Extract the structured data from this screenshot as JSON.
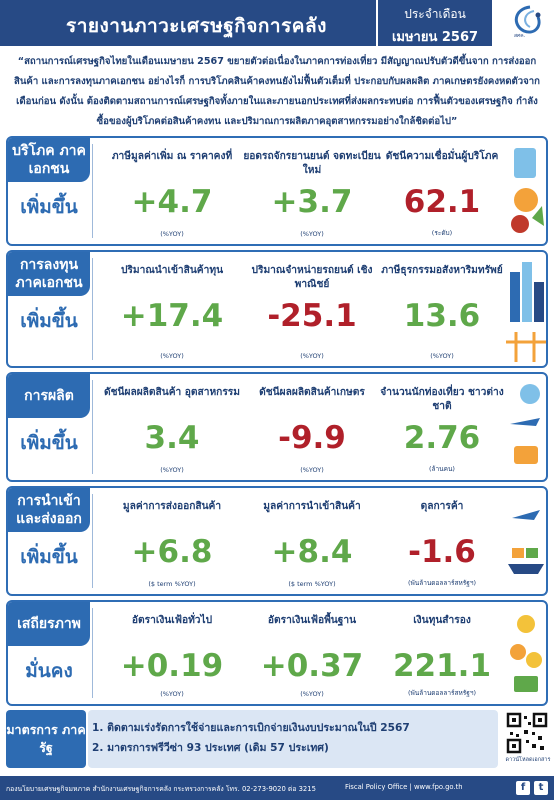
{
  "header": {
    "title": "รายงานภาวะเศรษฐกิจการคลัง",
    "period_label": "ประจำเดือน",
    "period_value": "เมษายน 2567",
    "logo_text": "สศค."
  },
  "summary": "“สถานการณ์เศรษฐกิจไทยในเดือนเมษายน 2567 ขยายตัวต่อเนื่องในภาคการท่องเที่ยว มีสัญญาณปรับตัวดีขึ้นจาก การส่งออกสินค้า และการลงทุนภาคเอกชน อย่างไรก็ การบริโภคสินค้าคงทนยังไม่ฟื้นตัวเต็มที่ ประกอบกับผลผลิต ภาคเกษตรยังคงหดตัวจากเดือนก่อน ดังนั้น ต้องติดตามสถานการณ์เศรษฐกิจทั้งภายในและภายนอกประเทศที่ส่งผลกระทบต่อ การฟื้นตัวของเศรษฐกิจ กำลังซื้อของผู้บริโภคต่อสินค้าคงทน และปริมาณการผลิตภาคอุตสาหกรรมอย่างใกล้ชิดต่อไป”",
  "sections": [
    {
      "label": "บริโภค ภาคเอกชน",
      "status": "เพิ่มขึ้น",
      "indicators": [
        {
          "label": "ภาษีมูลค่าเพิ่ม ณ ราคาคงที่",
          "value": "+4.7",
          "unit": "(%YOY)",
          "tone": "pos"
        },
        {
          "label": "ยอดรถจักรยานยนต์ จดทะเบียนใหม่",
          "value": "+3.7",
          "unit": "(%YOY)",
          "tone": "pos"
        },
        {
          "label": "ดัชนีความเชื่อมั่นผู้บริโภค",
          "value": "62.1",
          "unit": "(ระดับ)",
          "tone": "neg"
        }
      ]
    },
    {
      "label": "การลงทุน ภาคเอกชน",
      "status": "เพิ่มขึ้น",
      "indicators": [
        {
          "label": "ปริมาณนำเข้าสินค้าทุน",
          "value": "+17.4",
          "unit": "(%YOY)",
          "tone": "pos"
        },
        {
          "label": "ปริมาณจำหน่ายรถยนต์ เชิงพาณิชย์",
          "value": "-25.1",
          "unit": "(%YOY)",
          "tone": "neg"
        },
        {
          "label": "ภาษีธุรกรรมอสังหาริมทรัพย์",
          "value": "13.6",
          "unit": "(%YOY)",
          "tone": "pos"
        }
      ]
    },
    {
      "label": "การผลิต",
      "status": "เพิ่มขึ้น",
      "indicators": [
        {
          "label": "ดัชนีผลผลิตสินค้า อุตสาหกรรม",
          "value": "3.4",
          "unit": "(%YOY)",
          "tone": "pos"
        },
        {
          "label": "ดัชนีผลผลิตสินค้าเกษตร",
          "value": "-9.9",
          "unit": "(%YOY)",
          "tone": "neg"
        },
        {
          "label": "จำนวนนักท่องเที่ยว ชาวต่างชาติ",
          "value": "2.76",
          "unit": "(ล้านคน)",
          "tone": "pos"
        }
      ]
    },
    {
      "label": "การนำเข้า และส่งออก",
      "status": "เพิ่มขึ้น",
      "indicators": [
        {
          "label": "มูลค่าการส่งออกสินค้า",
          "value": "+6.8",
          "unit": "($ term %YOY)",
          "tone": "pos"
        },
        {
          "label": "มูลค่าการนำเข้าสินค้า",
          "value": "+8.4",
          "unit": "($ term %YOY)",
          "tone": "pos"
        },
        {
          "label": "ดุลการค้า",
          "value": "-1.6",
          "unit": "(พันล้านดอลลาร์สหรัฐฯ)",
          "tone": "neg"
        }
      ]
    },
    {
      "label": "เสถียรภาพ",
      "status": "มั่นคง",
      "indicators": [
        {
          "label": "อัตราเงินเฟ้อทั่วไป",
          "value": "+0.19",
          "unit": "(%YOY)",
          "tone": "pos"
        },
        {
          "label": "อัตราเงินเฟ้อพื้นฐาน",
          "value": "+0.37",
          "unit": "(%YOY)",
          "tone": "pos"
        },
        {
          "label": "เงินทุนสำรอง",
          "value": "221.1",
          "unit": "(พันล้านดอลลาร์สหรัฐฯ)",
          "tone": "pos"
        }
      ]
    }
  ],
  "measures": {
    "label": "มาตรการ ภาครัฐ",
    "items": [
      "1. ติดตามเร่งรัดการใช้จ่ายและการเบิกจ่ายเงินงบประมาณในปี 2567",
      "2. มาตรการฟรีวีซ่า 93 ประเทศ (เดิม 57 ประเทศ)"
    ],
    "qr_label": "ดาวน์โหลดเอกสาร"
  },
  "footer": {
    "left": "กองนโยบายเศรษฐกิจมหภาค สำนักงานเศรษฐกิจการคลัง กระทรวงการคลัง โทร. 02-273-9020 ต่อ 3215",
    "right": "Fiscal Policy Office | www.fpo.go.th"
  },
  "colors": {
    "primary": "#274a85",
    "accent": "#2d6bb2",
    "positive": "#5fa84a",
    "negative": "#b0202a"
  }
}
